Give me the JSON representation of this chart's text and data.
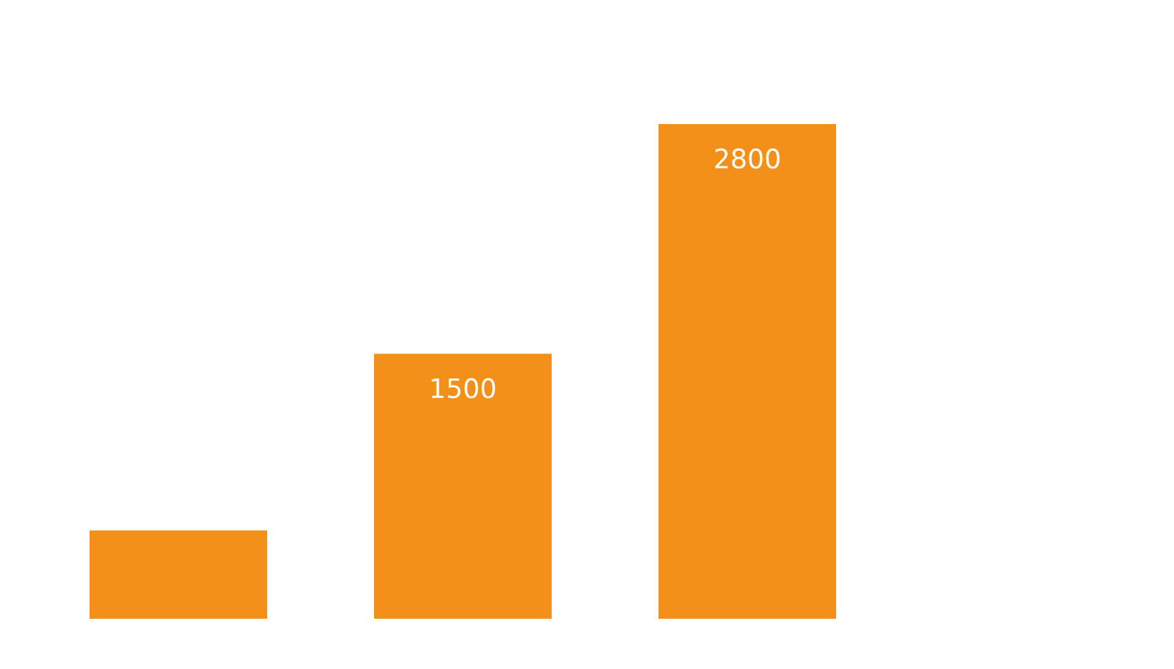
{
  "chart_data": {
    "type": "bar",
    "categories": [
      null,
      null,
      null
    ],
    "values": [
      500,
      1500,
      2800
    ],
    "value_labels": [
      null,
      "1500",
      "2800"
    ],
    "color": "#f39019"
  }
}
